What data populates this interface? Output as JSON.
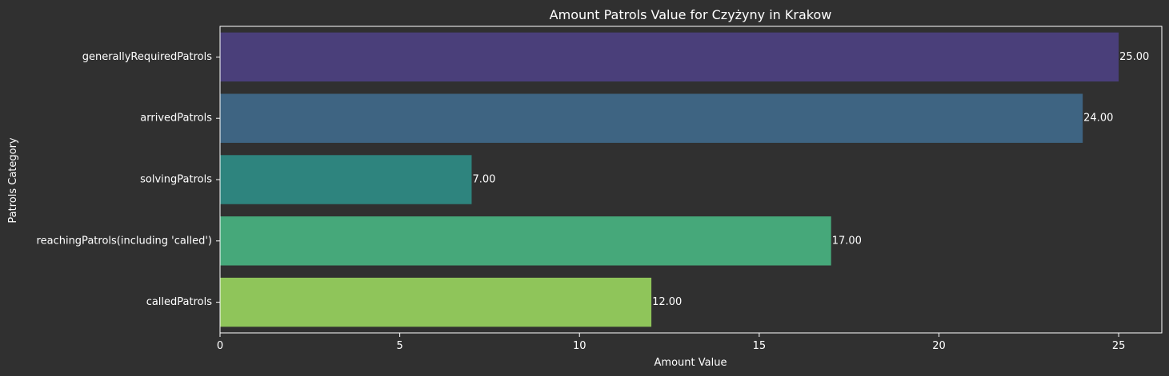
{
  "figure": {
    "background": "#303030",
    "text_color": "#ffffff"
  },
  "chart_data": {
    "type": "bar",
    "orientation": "horizontal",
    "title": "Amount Patrols Value for Czyżyny in Krakow",
    "xlabel": "Amount Value",
    "ylabel": "Patrols Category",
    "categories": [
      "generallyRequiredPatrols",
      "arrivedPatrols",
      "solvingPatrols",
      "reachingPatrols(including 'called')",
      "calledPatrols"
    ],
    "values": [
      25,
      24,
      7,
      17,
      12
    ],
    "value_labels": [
      "25.00",
      "24.00",
      "7.00",
      "17.00",
      "12.00"
    ],
    "colors": [
      "#4a3f7a",
      "#3e6482",
      "#2e847e",
      "#46a87a",
      "#8fc55a"
    ],
    "xlim": [
      0,
      26.2
    ],
    "xticks": [
      0,
      5,
      10,
      15,
      20,
      25
    ],
    "xtick_labels": [
      "0",
      "5",
      "10",
      "15",
      "20",
      "25"
    ],
    "grid": false,
    "legend": false
  }
}
